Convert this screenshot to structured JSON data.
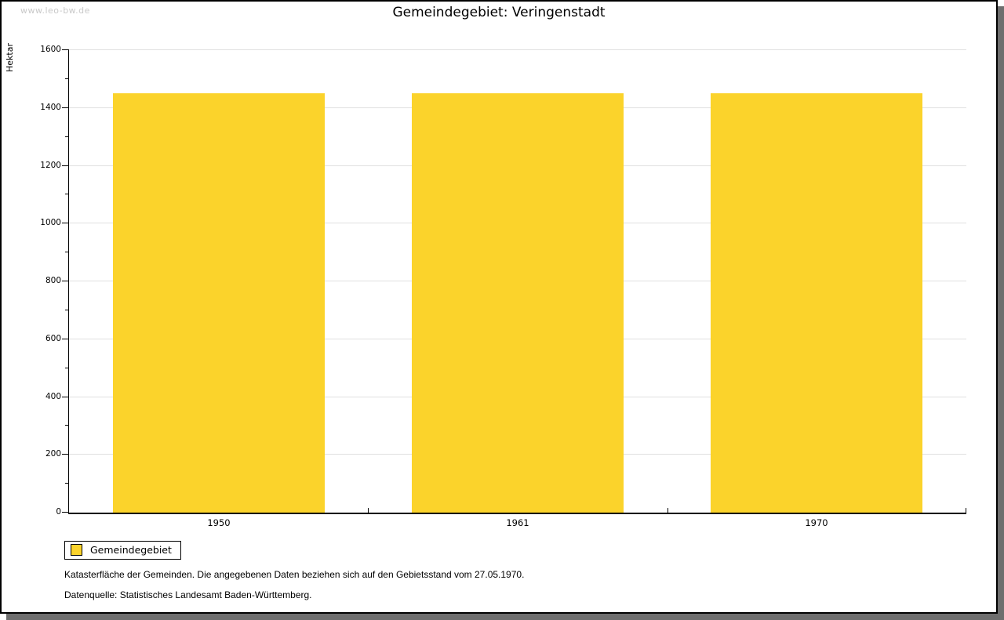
{
  "watermark": "www.leo-bw.de",
  "title": "Gemeindegebiet: Veringenstadt",
  "chart_data": {
    "type": "bar",
    "title": "Gemeindegebiet: Veringenstadt",
    "categories": [
      "1950",
      "1961",
      "1970"
    ],
    "series": [
      {
        "name": "Gemeindegebiet",
        "values": [
          1450,
          1450,
          1450
        ]
      }
    ],
    "xlabel": "",
    "ylabel": "Hektar",
    "ylim": [
      0,
      1600
    ],
    "ytick_step": 200,
    "minor_tick_step": 100,
    "grid": true,
    "legend_position": "bottom-left",
    "bar_color": "#FBD32B"
  },
  "legend": {
    "items": [
      {
        "label": "Gemeindegebiet",
        "color": "#FBD32B"
      }
    ]
  },
  "footnotes": [
    "Katasterfläche der Gemeinden. Die angegebenen Daten beziehen sich auf den Gebietsstand vom 27.05.1970.",
    "Datenquelle: Statistisches Landesamt Baden-Württemberg."
  ],
  "colors": {
    "bar": "#FBD32B",
    "gridline": "#e0e0e0",
    "axis": "#000000",
    "watermark_text": "#c9c9c9",
    "frame_shadow": "#6e6e6e"
  }
}
